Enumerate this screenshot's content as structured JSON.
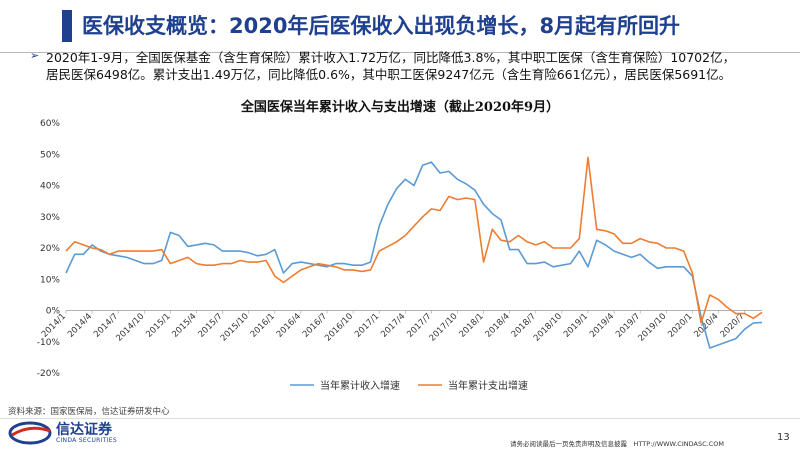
{
  "page": {
    "title": "医保收支概览：2020年后医保收入出现负增长，8月起有所回升",
    "summary_lines": [
      "2020年1-9月，全国医保基金（含生育保险）累计收入1.72万亿，同比降低3.8%，其中职工医保（含生育保险）10702亿，",
      "居民医保6498亿。累计支出1.49万亿，同比降低0.6%，其中职工医保9247亿元（含生育险661亿元），居民医保5691亿。"
    ],
    "source": "资料来源：国家医保局，信达证券研发中心",
    "logo_cn": "信达证券",
    "logo_en": "CINDA SECURITIES",
    "disclaimer": "请务必阅读最后一页免责声明及信息披露　HTTP://WWW.CINDASC.COM",
    "page_number": "13",
    "brand_color": "#1f3f8f"
  },
  "chart_data": {
    "type": "line",
    "title": "全国医保当年累计收入与支出增速（截止2020年9月）",
    "xlabel": "",
    "ylabel": "",
    "ylim": [
      -20,
      60
    ],
    "yticks": [
      -20,
      -10,
      0,
      10,
      20,
      30,
      40,
      50,
      60
    ],
    "ytick_labels": [
      "-20%",
      "-10%",
      "0%",
      "10%",
      "20%",
      "30%",
      "40%",
      "50%",
      "60%"
    ],
    "x": [
      "2014/1",
      "2014/2",
      "2014/3",
      "2014/4",
      "2014/5",
      "2014/6",
      "2014/7",
      "2014/8",
      "2014/9",
      "2014/10",
      "2014/11",
      "2014/12",
      "2015/1",
      "2015/2",
      "2015/3",
      "2015/4",
      "2015/5",
      "2015/6",
      "2015/7",
      "2015/8",
      "2015/9",
      "2015/10",
      "2015/11",
      "2015/12",
      "2016/1",
      "2016/2",
      "2016/3",
      "2016/4",
      "2016/5",
      "2016/6",
      "2016/7",
      "2016/8",
      "2016/9",
      "2016/10",
      "2016/11",
      "2016/12",
      "2017/1",
      "2017/2",
      "2017/3",
      "2017/4",
      "2017/5",
      "2017/6",
      "2017/7",
      "2017/8",
      "2017/9",
      "2017/10",
      "2017/11",
      "2017/12",
      "2018/1",
      "2018/2",
      "2018/3",
      "2018/4",
      "2018/5",
      "2018/6",
      "2018/7",
      "2018/8",
      "2018/9",
      "2018/10",
      "2018/11",
      "2018/12",
      "2019/1",
      "2019/2",
      "2019/3",
      "2019/4",
      "2019/5",
      "2019/6",
      "2019/7",
      "2019/8",
      "2019/9",
      "2019/10",
      "2019/11",
      "2019/12",
      "2020/1",
      "2020/2",
      "2020/3",
      "2020/4",
      "2020/5",
      "2020/6",
      "2020/7",
      "2020/8",
      "2020/9"
    ],
    "xtick_labels": [
      "2014/1",
      "2014/4",
      "2014/7",
      "2014/10",
      "2015/1",
      "2015/4",
      "2015/7",
      "2015/10",
      "2016/1",
      "2016/4",
      "2016/7",
      "2016/10",
      "2017/1",
      "2017/4",
      "2017/7",
      "2017/10",
      "2018/1",
      "2018/4",
      "2018/7",
      "2018/10",
      "2019/1",
      "2019/4",
      "2019/7",
      "2019/10",
      "2020/1",
      "2020/4",
      "2020/7"
    ],
    "grid": false,
    "legend": "bottom",
    "series": [
      {
        "name": "当年累计收入增速",
        "color": "#5b9bd5",
        "values": [
          12,
          18,
          18,
          21,
          19,
          18,
          17.5,
          17,
          16,
          15,
          15,
          16,
          25,
          24,
          20.5,
          21,
          21.5,
          21,
          19,
          19,
          19,
          18.5,
          17.5,
          18,
          19.5,
          12,
          15,
          15.5,
          15,
          14.5,
          14,
          15,
          15,
          14.5,
          14.5,
          15.5,
          27,
          34,
          39,
          42,
          40,
          46.5,
          47.5,
          44,
          44.5,
          42,
          40.5,
          38.5,
          34,
          31,
          29,
          19.5,
          19.5,
          15,
          15,
          15.5,
          14,
          14.5,
          15,
          19,
          14,
          22.5,
          21,
          19,
          18,
          17,
          18,
          15.5,
          13.5,
          14,
          14,
          14,
          11,
          -2,
          -12,
          -11,
          -10,
          -9,
          -6,
          -4,
          -3.8
        ]
      },
      {
        "name": "当年累计支出增速",
        "color": "#ed7d31",
        "values": [
          19,
          22,
          21,
          20,
          19.5,
          18,
          19,
          19,
          19,
          19,
          19,
          19.5,
          15,
          16,
          17,
          15,
          14.5,
          14.5,
          15,
          15,
          16,
          15.5,
          15.5,
          16,
          11,
          9,
          11,
          13,
          14,
          15,
          14.5,
          14,
          13,
          13,
          12.5,
          13,
          19,
          20.5,
          22,
          24,
          27,
          30,
          32.5,
          32,
          36.5,
          35.5,
          36,
          35.5,
          15.5,
          26,
          22.5,
          22,
          24,
          22,
          21,
          22,
          20,
          20,
          20,
          23,
          49,
          26,
          25.5,
          24.5,
          21.5,
          21.5,
          23,
          22,
          21.5,
          20,
          20,
          19,
          12,
          -4,
          5,
          3.5,
          1,
          -1,
          -1,
          -2.5,
          -0.6
        ]
      }
    ]
  }
}
